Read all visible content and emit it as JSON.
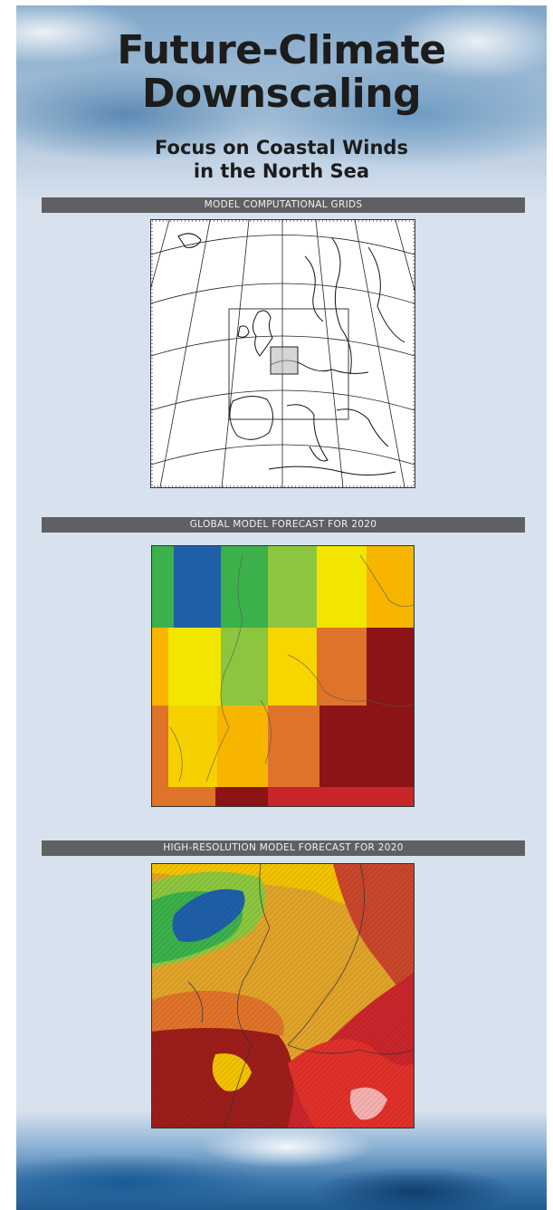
{
  "poster": {
    "title_line1": "Future-Climate",
    "title_line2": "Downscaling",
    "subtitle_line1": "Focus on Coastal Winds",
    "subtitle_line2": "in the North Sea"
  },
  "sections": [
    {
      "heading": "MODEL COMPUTATIONAL GRIDS"
    },
    {
      "heading": "GLOBAL MODEL FORECAST FOR 2020"
    },
    {
      "heading": "HIGH-RESOLUTION MODEL FORECAST FOR 2020"
    }
  ],
  "colors": {
    "panel_background": "#d8e2ee",
    "heading_bar": "#5f6062",
    "wind_scale": [
      "#1f5fa8",
      "#3cb04a",
      "#8cc63f",
      "#f2e500",
      "#f7b500",
      "#e0732a",
      "#c8262b",
      "#8c1414"
    ]
  }
}
